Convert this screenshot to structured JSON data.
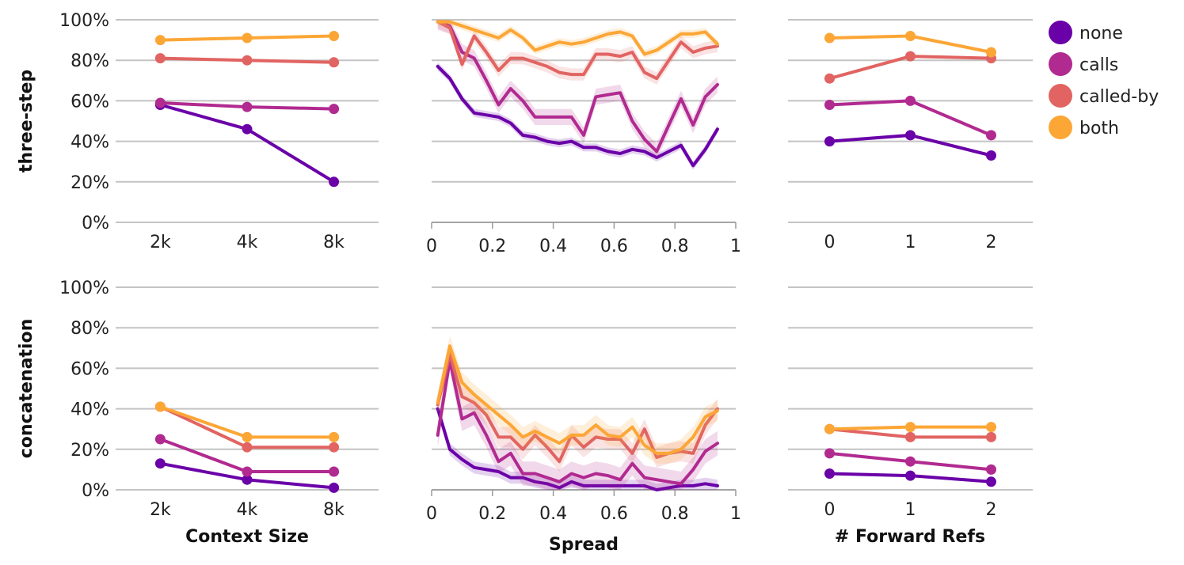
{
  "chart_data": {
    "type": "line",
    "series_names": [
      "none",
      "calls",
      "called-by",
      "both"
    ],
    "colors": {
      "none": "#6a00a8",
      "calls": "#b12a90",
      "called-by": "#e16462",
      "both": "#fca636"
    },
    "row_labels": [
      "three-step",
      "concatenation"
    ],
    "x_titles": [
      "Context Size",
      "Spread",
      "# Forward Refs"
    ],
    "y_ticks": [
      "0%",
      "20%",
      "40%",
      "60%",
      "80%",
      "100%"
    ],
    "ylim": [
      0,
      100
    ],
    "panels": [
      {
        "row": 0,
        "col": 0,
        "x_kind": "cat",
        "categories": [
          "2k",
          "4k",
          "8k"
        ],
        "series": [
          {
            "name": "none",
            "values": [
              58,
              46,
              20
            ]
          },
          {
            "name": "calls",
            "values": [
              59,
              57,
              56
            ]
          },
          {
            "name": "called-by",
            "values": [
              81,
              80,
              79
            ]
          },
          {
            "name": "both",
            "values": [
              90,
              91,
              92
            ]
          }
        ]
      },
      {
        "row": 0,
        "col": 1,
        "x_kind": "num",
        "xlim": [
          0,
          1
        ],
        "x_ticks": [
          "0",
          "0.2",
          "0.4",
          "0.6",
          "0.8",
          "1"
        ],
        "x": [
          0.02,
          0.06,
          0.1,
          0.14,
          0.18,
          0.22,
          0.26,
          0.3,
          0.34,
          0.38,
          0.42,
          0.46,
          0.5,
          0.54,
          0.58,
          0.62,
          0.66,
          0.7,
          0.74,
          0.78,
          0.82,
          0.86,
          0.9,
          0.94
        ],
        "series": [
          {
            "name": "none",
            "values": [
              77,
              71,
              61,
              54,
              53,
              52,
              49,
              43,
              42,
              40,
              39,
              40,
              37,
              37,
              35,
              34,
              36,
              35,
              32,
              35,
              38,
              28,
              36,
              46
            ],
            "band": 2
          },
          {
            "name": "calls",
            "values": [
              99,
              97,
              84,
              81,
              70,
              58,
              66,
              60,
              52,
              52,
              52,
              52,
              43,
              62,
              63,
              64,
              50,
              41,
              35,
              48,
              61,
              48,
              62,
              68
            ],
            "band": 4
          },
          {
            "name": "called-by",
            "values": [
              99,
              96,
              78,
              92,
              84,
              75,
              81,
              81,
              79,
              77,
              74,
              73,
              73,
              83,
              83,
              82,
              84,
              74,
              71,
              80,
              89,
              84,
              86,
              87
            ],
            "band": 3
          },
          {
            "name": "both",
            "values": [
              99,
              99,
              97,
              95,
              93,
              91,
              95,
              91,
              85,
              87,
              89,
              88,
              89,
              91,
              93,
              94,
              92,
              83,
              85,
              89,
              93,
              93,
              94,
              88
            ],
            "band": 2
          }
        ]
      },
      {
        "row": 0,
        "col": 2,
        "x_kind": "cat",
        "categories": [
          "0",
          "1",
          "2"
        ],
        "series": [
          {
            "name": "none",
            "values": [
              40,
              43,
              33
            ]
          },
          {
            "name": "calls",
            "values": [
              58,
              60,
              43
            ]
          },
          {
            "name": "called-by",
            "values": [
              71,
              82,
              81
            ]
          },
          {
            "name": "both",
            "values": [
              91,
              92,
              84
            ]
          }
        ]
      },
      {
        "row": 1,
        "col": 0,
        "x_kind": "cat",
        "categories": [
          "2k",
          "4k",
          "8k"
        ],
        "series": [
          {
            "name": "none",
            "values": [
              13,
              5,
              1
            ]
          },
          {
            "name": "calls",
            "values": [
              25,
              9,
              9
            ]
          },
          {
            "name": "called-by",
            "values": [
              41,
              21,
              21
            ]
          },
          {
            "name": "both",
            "values": [
              41,
              26,
              26
            ]
          }
        ]
      },
      {
        "row": 1,
        "col": 1,
        "x_kind": "num",
        "xlim": [
          0,
          1
        ],
        "x_ticks": [
          "0",
          "0.2",
          "0.4",
          "0.6",
          "0.8",
          "1"
        ],
        "x": [
          0.02,
          0.06,
          0.1,
          0.14,
          0.18,
          0.22,
          0.26,
          0.3,
          0.34,
          0.38,
          0.42,
          0.46,
          0.5,
          0.54,
          0.58,
          0.62,
          0.66,
          0.7,
          0.74,
          0.78,
          0.82,
          0.86,
          0.9,
          0.94
        ],
        "series": [
          {
            "name": "none",
            "values": [
              40,
              20,
              15,
              11,
              10,
              9,
              6,
              6,
              4,
              3,
              1,
              4,
              2,
              2,
              2,
              2,
              2,
              2,
              0,
              1,
              2,
              2,
              3,
              2
            ],
            "band": 3
          },
          {
            "name": "calls",
            "values": [
              27,
              64,
              35,
              38,
              27,
              14,
              18,
              8,
              8,
              6,
              4,
              8,
              6,
              8,
              7,
              5,
              13,
              6,
              5,
              4,
              3,
              10,
              19,
              23
            ],
            "band": 6
          },
          {
            "name": "called-by",
            "values": [
              42,
              67,
              46,
              43,
              37,
              26,
              26,
              20,
              27,
              21,
              14,
              27,
              21,
              26,
              25,
              25,
              18,
              30,
              16,
              18,
              19,
              18,
              32,
              40
            ],
            "band": 5
          },
          {
            "name": "both",
            "values": [
              43,
              71,
              53,
              47,
              42,
              37,
              32,
              26,
              29,
              26,
              23,
              27,
              27,
              32,
              27,
              26,
              31,
              22,
              18,
              18,
              20,
              26,
              36,
              39
            ],
            "band": 5
          }
        ]
      },
      {
        "row": 1,
        "col": 2,
        "x_kind": "cat",
        "categories": [
          "0",
          "1",
          "2"
        ],
        "series": [
          {
            "name": "none",
            "values": [
              8,
              7,
              4
            ]
          },
          {
            "name": "calls",
            "values": [
              18,
              14,
              10
            ]
          },
          {
            "name": "called-by",
            "values": [
              30,
              26,
              26
            ]
          },
          {
            "name": "both",
            "values": [
              30,
              31,
              31
            ]
          }
        ]
      }
    ]
  }
}
